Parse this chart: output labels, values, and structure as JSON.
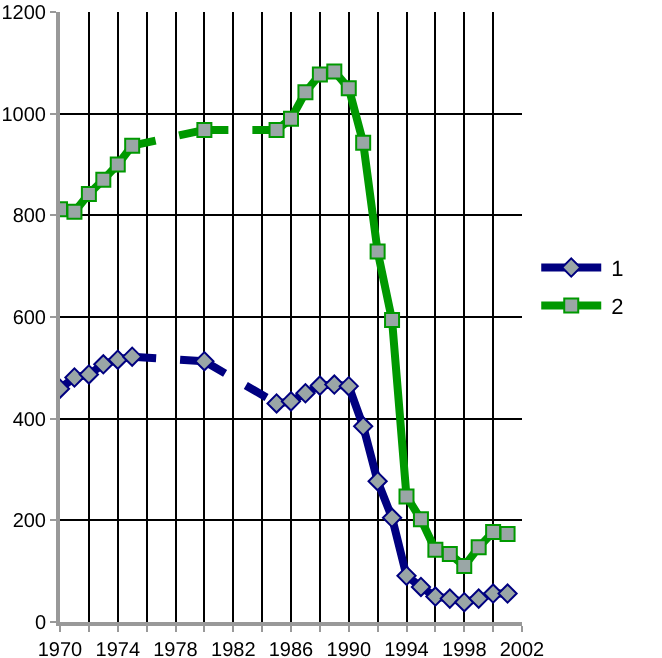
{
  "chart_data": {
    "type": "line",
    "series": [
      {
        "name": "1",
        "color": "#000080",
        "marker": "diamond",
        "x": [
          1970,
          1971,
          1972,
          1973,
          1974,
          1975,
          1980,
          1985,
          1986,
          1987,
          1988,
          1989,
          1990,
          1991,
          1992,
          1993,
          1994,
          1995,
          1996,
          1997,
          1998,
          1999,
          2000,
          2001
        ],
        "values": [
          459,
          481,
          487,
          507,
          516,
          522,
          513,
          430,
          434,
          450,
          465,
          467,
          464,
          385,
          277,
          205,
          91,
          69,
          50,
          46,
          39,
          46,
          56,
          56
        ]
      },
      {
        "name": "2",
        "color": "#009900",
        "marker": "square",
        "x": [
          1970,
          1971,
          1972,
          1973,
          1974,
          1975,
          1980,
          1985,
          1986,
          1987,
          1988,
          1989,
          1990,
          1991,
          1992,
          1993,
          1994,
          1995,
          1996,
          1997,
          1998,
          1999,
          2000,
          2001
        ],
        "values": [
          812,
          807,
          842,
          870,
          900,
          937,
          968,
          968,
          990,
          1042,
          1077,
          1083,
          1050,
          943,
          729,
          594,
          247,
          202,
          142,
          134,
          110,
          147,
          177,
          173
        ]
      }
    ],
    "xlim": [
      1970,
      2002
    ],
    "xticks": [
      1970,
      {
        "value": 1972,
        "label": null
      },
      1974,
      {
        "value": 1976,
        "label": null
      },
      1978,
      {
        "value": 1980,
        "label": null
      },
      1982,
      {
        "value": 1984,
        "label": null
      },
      1986,
      {
        "value": 1988,
        "label": null
      },
      1990,
      {
        "value": 1992,
        "label": null
      },
      1994,
      {
        "value": 1996,
        "label": null
      },
      1998,
      {
        "value": 2000,
        "label": null
      },
      2002
    ],
    "ylim": [
      0,
      1200
    ],
    "yticks": [
      0,
      200,
      400,
      600,
      800,
      1000,
      1200
    ],
    "grid": true,
    "legend": "right"
  }
}
